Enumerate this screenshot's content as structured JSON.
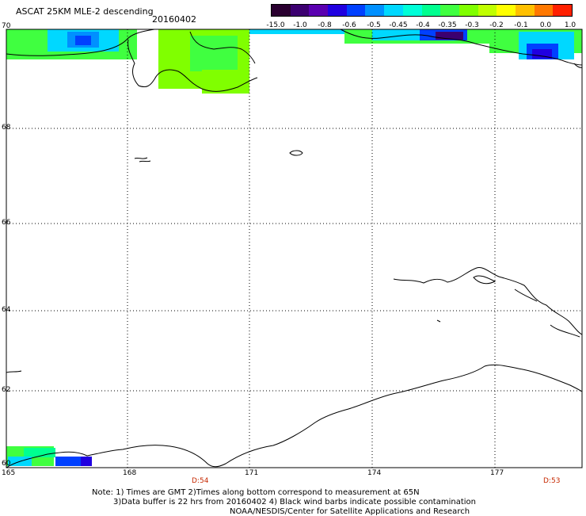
{
  "title": "ASCAT 25KM MLE-2 descending",
  "date": "20160402",
  "colorbar": {
    "colors": [
      "#2a0030",
      "#3c0070",
      "#5a00b0",
      "#2000e0",
      "#0040ff",
      "#0090ff",
      "#00d8ff",
      "#00ffd8",
      "#00ff90",
      "#40ff40",
      "#80ff00",
      "#c0ff00",
      "#ffff00",
      "#ffc000",
      "#ff7800",
      "#ff2000"
    ],
    "labels": [
      "-15.0",
      "-1.0",
      "-0.8",
      "-0.6",
      "-0.5",
      "-0.45",
      "-0.4",
      "-0.35",
      "-0.3",
      "-0.2",
      "-0.1",
      "0.0",
      "1.0"
    ]
  },
  "lat_labels": [
    "70",
    "68",
    "66",
    "64",
    "62",
    "60"
  ],
  "lon_labels": [
    "165",
    "168",
    "171",
    "174",
    "177"
  ],
  "orbit_labels": [
    "D:54",
    "D:53"
  ],
  "notes": [
    "Note: 1) Times are GMT 2)Times along bottom correspond to measurement at 65N",
    "3)Data buffer is 22 hrs from 20160402 4) Black wind barbs indicate possible contamination",
    "NOAA/NESDIS/Center for Satellite Applications and Research"
  ]
}
